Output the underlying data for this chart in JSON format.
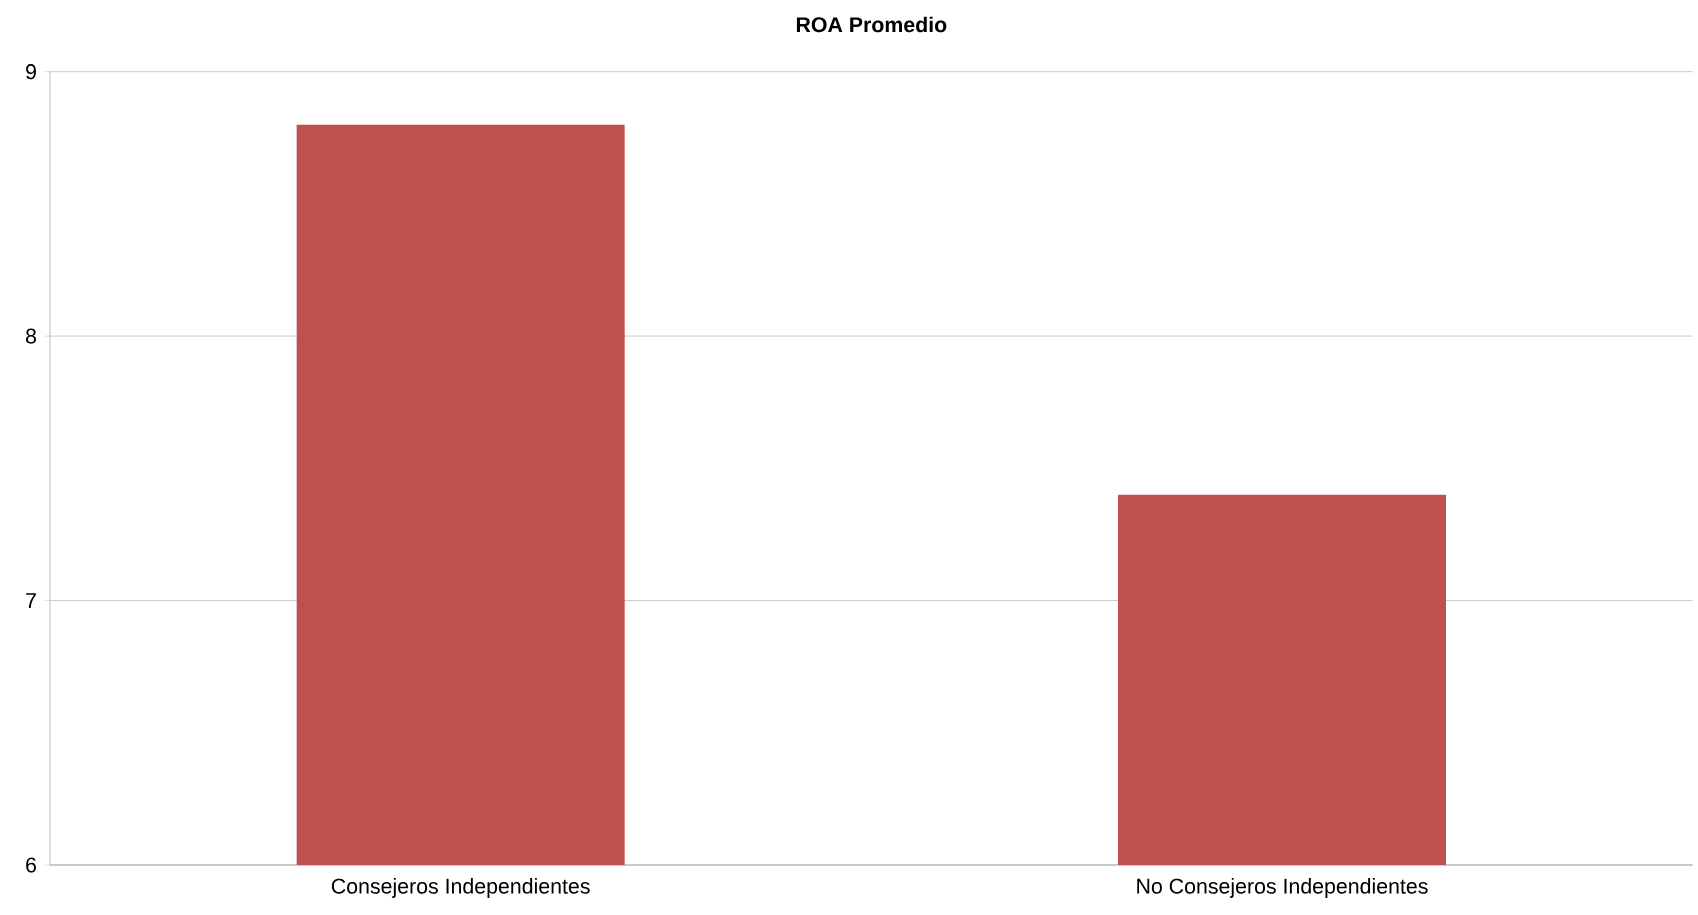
{
  "chart_data": {
    "type": "bar",
    "title": "ROA Promedio",
    "categories": [
      "Consejeros Independientes",
      "No Consejeros Independientes"
    ],
    "values": [
      8.8,
      7.4
    ],
    "color": "#c0504d",
    "ylim": [
      6,
      9
    ],
    "yticks": [
      6,
      7,
      8,
      9
    ],
    "grid": "y"
  }
}
